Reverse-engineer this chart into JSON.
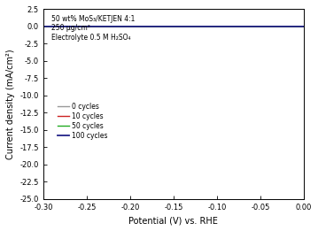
{
  "title_lines": [
    "50 wt% MoS₃/KETJEN 4:1",
    "250 μg/cm²",
    "Electrolyte 0.5 M H₂SO₄"
  ],
  "xlabel": "Potential (V) vs. RHE",
  "ylabel": "Current density (mA/cm²)",
  "xlim": [
    -0.3,
    0.0
  ],
  "ylim": [
    -25.0,
    2.5
  ],
  "yticks": [
    2.5,
    0.0,
    -2.5,
    -5.0,
    -7.5,
    -10.0,
    -12.5,
    -15.0,
    -17.5,
    -20.0,
    -22.5,
    -25.0
  ],
  "xticks": [
    -0.3,
    -0.25,
    -0.2,
    -0.15,
    -0.1,
    -0.05,
    0.0
  ],
  "curves": [
    {
      "label": "0 cycles",
      "color": "#999999",
      "lw": 1.0,
      "eta0": -0.231,
      "shift": 0.0
    },
    {
      "label": "10 cycles",
      "color": "#cc2222",
      "lw": 1.0,
      "eta0": -0.231,
      "shift": -0.004
    },
    {
      "label": "50 cycles",
      "color": "#22aa22",
      "lw": 1.0,
      "eta0": -0.231,
      "shift": -0.001
    },
    {
      "label": "100 cycles",
      "color": "#222288",
      "lw": 1.3,
      "eta0": -0.231,
      "shift": 0.002
    }
  ],
  "j_lim": -25.0,
  "j0": 0.0001,
  "alpha": 0.5,
  "background_color": "#ffffff"
}
